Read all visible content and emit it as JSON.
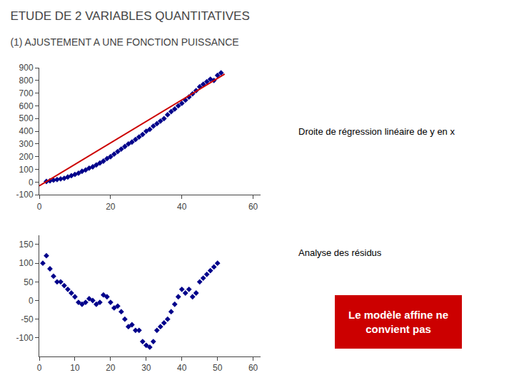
{
  "chart_data": [
    {
      "type": "scatter",
      "title": "ETUDE DE 2 VARIABLES QUANTITATIVES",
      "subtitle": "(1) AJUSTEMENT A UNE FONCTION PUISSANCE",
      "series": [
        {
          "type": "scatter",
          "marker": "diamond",
          "color": "#00008B",
          "x": [
            2,
            3,
            4,
            5,
            6,
            7,
            8,
            9,
            10,
            11,
            12,
            13,
            14,
            15,
            16,
            17,
            18,
            19,
            20,
            21,
            22,
            23,
            24,
            25,
            26,
            27,
            28,
            29,
            30,
            31,
            32,
            33,
            34,
            35,
            36,
            37,
            38,
            39,
            40,
            41,
            42,
            43,
            44,
            45,
            46,
            47,
            48,
            49,
            50,
            51
          ],
          "values": [
            5,
            10,
            15,
            20,
            25,
            30,
            40,
            50,
            60,
            70,
            85,
            95,
            110,
            120,
            135,
            150,
            165,
            185,
            200,
            220,
            240,
            260,
            280,
            300,
            315,
            335,
            355,
            375,
            400,
            415,
            440,
            460,
            480,
            500,
            530,
            555,
            575,
            600,
            620,
            645,
            670,
            695,
            720,
            750,
            770,
            790,
            810,
            800,
            840,
            860
          ]
        },
        {
          "type": "line",
          "line_style": "solid",
          "color": "#cc0000",
          "x": [
            0,
            52
          ],
          "values": [
            -30,
            850
          ]
        }
      ],
      "xlim": [
        0,
        62
      ],
      "xticks": [
        0,
        20,
        40,
        60
      ],
      "ylim": [
        -100,
        900
      ],
      "yticks": [
        -100,
        0,
        100,
        200,
        300,
        400,
        500,
        600,
        700,
        800,
        900
      ],
      "grid": false,
      "annotations": [
        {
          "text": "Droite de régression linéaire de y en x",
          "color": "#000000"
        }
      ]
    },
    {
      "type": "scatter",
      "series": [
        {
          "type": "scatter",
          "marker": "diamond",
          "color": "#00008B",
          "x": [
            1,
            2,
            3,
            4,
            5,
            6,
            7,
            8,
            9,
            10,
            11,
            12,
            13,
            14,
            15,
            16,
            17,
            18,
            19,
            20,
            21,
            22,
            23,
            24,
            25,
            26,
            27,
            28,
            29,
            30,
            31,
            32,
            33,
            34,
            35,
            36,
            37,
            38,
            39,
            40,
            41,
            42,
            43,
            44,
            45,
            46,
            47,
            48,
            49,
            50
          ],
          "values": [
            100,
            120,
            85,
            65,
            50,
            50,
            40,
            30,
            20,
            10,
            -5,
            -10,
            -5,
            5,
            0,
            -10,
            -5,
            15,
            10,
            -5,
            -20,
            -15,
            -30,
            -50,
            -70,
            -65,
            -80,
            -80,
            -110,
            -120,
            -125,
            -110,
            -80,
            -70,
            -60,
            -50,
            -30,
            -10,
            10,
            30,
            20,
            30,
            10,
            20,
            50,
            60,
            70,
            80,
            90,
            100
          ]
        }
      ],
      "xlim": [
        0,
        62
      ],
      "xticks": [
        0,
        10,
        20,
        30,
        40,
        50,
        60
      ],
      "ylim": [
        -150,
        175
      ],
      "yticks": [
        -100,
        -50,
        0,
        50,
        100,
        150
      ],
      "grid": false,
      "annotations": [
        {
          "text": "Analyse des résidus",
          "color": "#000000"
        },
        {
          "text": "Le modèle affine ne\nconvient pas",
          "color": "#ffffff",
          "bgcolor": "#cc0000"
        }
      ]
    }
  ]
}
